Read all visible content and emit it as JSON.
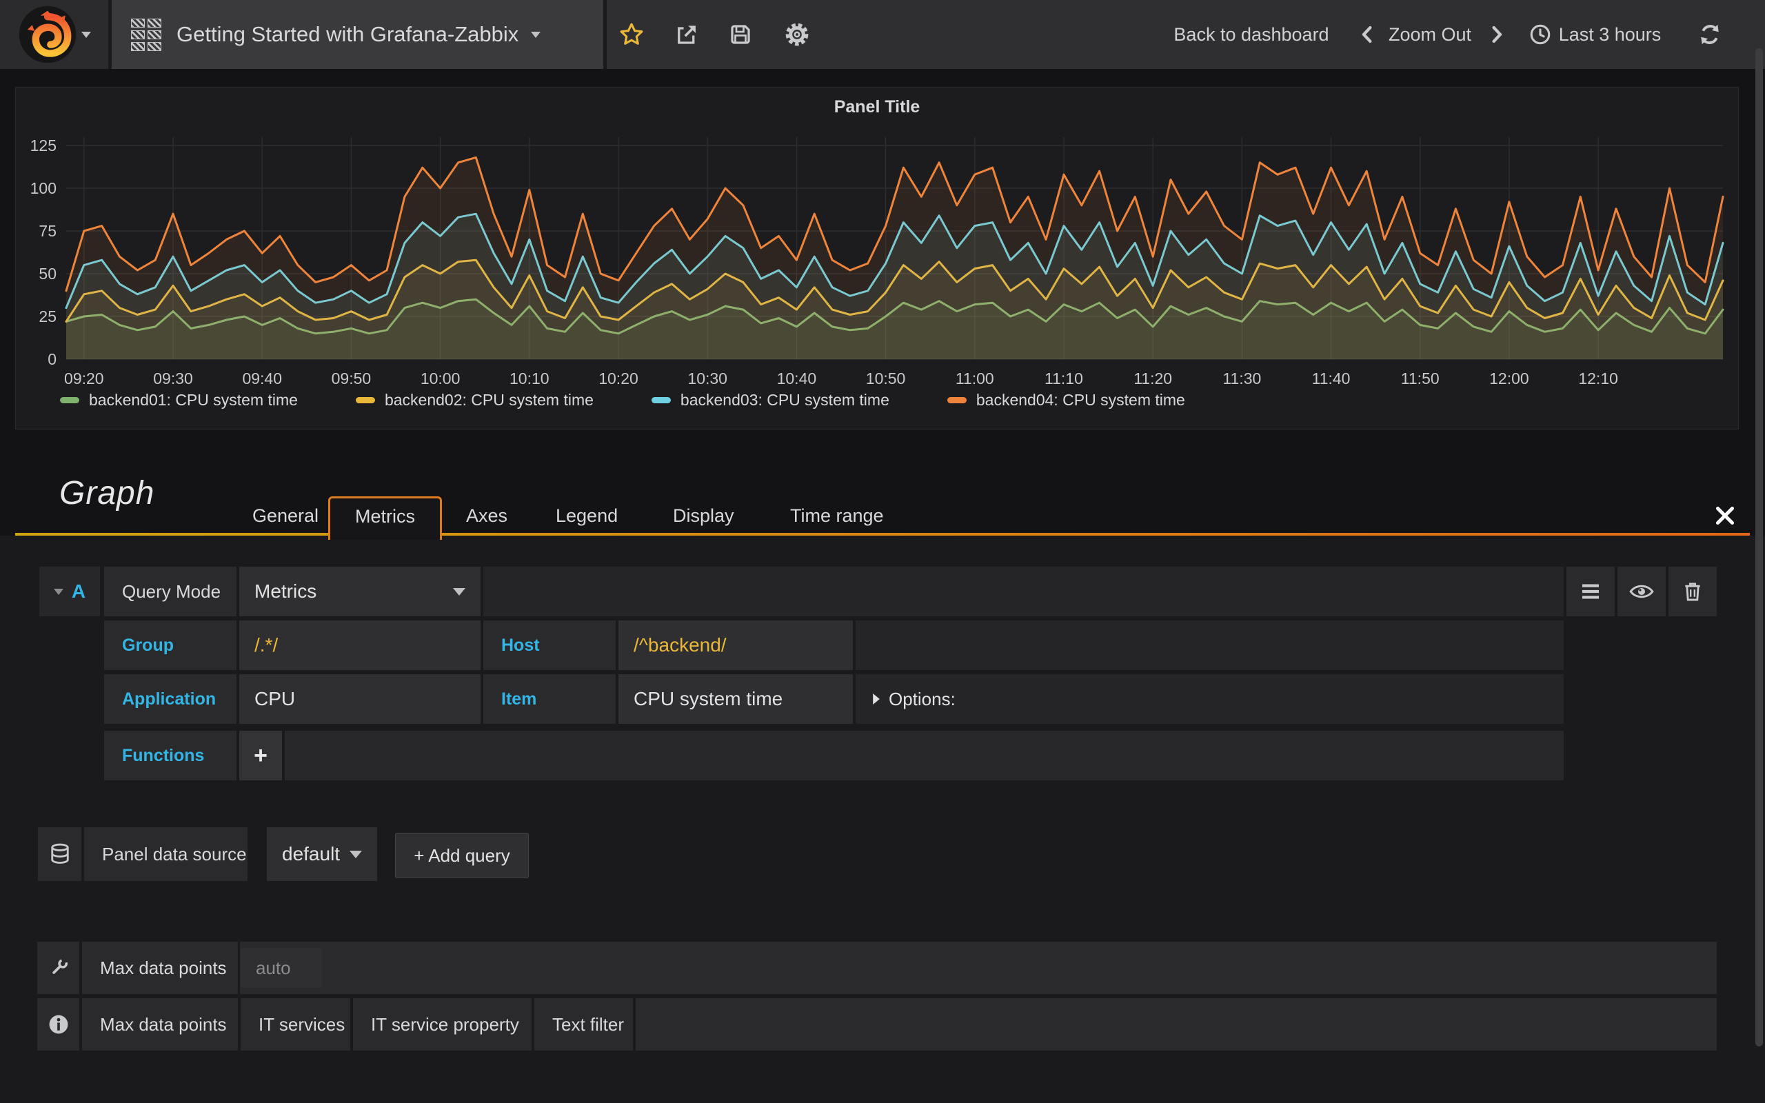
{
  "navbar": {
    "dashboard_title": "Getting Started with Grafana-Zabbix",
    "back_to_dashboard": "Back to dashboard",
    "zoom_out": "Zoom Out",
    "time_range": "Last 3 hours",
    "icons": [
      "grafana-logo",
      "dashboard-grid-icon",
      "star-icon",
      "share-icon",
      "save-icon",
      "gear-icon",
      "chevron-left-icon",
      "chevron-right-icon",
      "clock-icon",
      "refresh-icon"
    ],
    "accent_star_color": "#eab839"
  },
  "panel": {
    "title": "Panel Title"
  },
  "chart_data": {
    "type": "line",
    "title": "Panel Title",
    "xlabel": "",
    "ylabel": "",
    "ylim": [
      0,
      125
    ],
    "y_ticks": [
      0,
      25,
      50,
      75,
      100,
      125
    ],
    "x_ticks": [
      "09:20",
      "09:30",
      "09:40",
      "09:50",
      "10:00",
      "10:10",
      "10:20",
      "10:30",
      "10:40",
      "10:50",
      "11:00",
      "11:10",
      "11:20",
      "11:30",
      "11:40",
      "11:50",
      "12:00",
      "12:10"
    ],
    "x_tick_minutes": [
      2,
      12,
      22,
      32,
      42,
      52,
      62,
      72,
      82,
      92,
      102,
      112,
      122,
      132,
      142,
      152,
      162,
      172
    ],
    "x_total_minutes": 186,
    "grid": true,
    "legend_position": "bottom",
    "background": "#1c1c1e",
    "grid_color": "#2e2e30",
    "series": [
      {
        "name": "backend01: CPU system time",
        "color": "#7eb26d",
        "values": [
          22,
          25,
          26,
          20,
          17,
          19,
          28,
          18,
          20,
          23,
          25,
          20,
          24,
          18,
          15,
          16,
          18,
          15,
          17,
          30,
          33,
          30,
          34,
          35,
          27,
          20,
          31,
          18,
          16,
          27,
          17,
          15,
          20,
          25,
          28,
          23,
          26,
          31,
          29,
          21,
          24,
          19,
          27,
          19,
          17,
          18,
          25,
          33,
          29,
          34,
          28,
          32,
          33,
          25,
          29,
          22,
          32,
          28,
          33,
          24,
          29,
          19,
          31,
          26,
          30,
          25,
          22,
          34,
          32,
          33,
          26,
          33,
          28,
          33,
          22,
          29,
          20,
          18,
          27,
          19,
          16,
          28,
          20,
          16,
          18,
          29,
          17,
          27,
          20,
          16,
          30,
          18,
          15,
          29
        ]
      },
      {
        "name": "backend02: CPU system time",
        "color": "#eab839",
        "values": [
          22,
          38,
          40,
          30,
          26,
          29,
          43,
          28,
          31,
          35,
          38,
          31,
          36,
          28,
          23,
          24,
          28,
          23,
          26,
          48,
          55,
          50,
          57,
          58,
          42,
          30,
          49,
          28,
          24,
          42,
          25,
          23,
          31,
          39,
          44,
          35,
          41,
          50,
          45,
          32,
          36,
          29,
          42,
          29,
          26,
          28,
          39,
          55,
          47,
          57,
          45,
          53,
          55,
          40,
          47,
          35,
          53,
          44,
          54,
          37,
          47,
          30,
          52,
          42,
          48,
          39,
          35,
          56,
          53,
          55,
          42,
          55,
          44,
          54,
          35,
          47,
          31,
          27,
          43,
          29,
          25,
          45,
          30,
          24,
          27,
          47,
          26,
          43,
          30,
          24,
          49,
          27,
          23,
          46
        ]
      },
      {
        "name": "backend03: CPU system time",
        "color": "#6ed0e0",
        "values": [
          30,
          55,
          58,
          44,
          38,
          42,
          60,
          40,
          46,
          52,
          55,
          45,
          52,
          40,
          33,
          35,
          40,
          33,
          38,
          68,
          80,
          72,
          83,
          85,
          62,
          44,
          70,
          40,
          34,
          60,
          36,
          33,
          45,
          56,
          64,
          50,
          60,
          72,
          65,
          47,
          52,
          42,
          60,
          42,
          37,
          40,
          56,
          80,
          68,
          84,
          65,
          78,
          80,
          58,
          68,
          50,
          78,
          64,
          80,
          54,
          68,
          43,
          75,
          61,
          70,
          56,
          50,
          84,
          78,
          81,
          61,
          80,
          64,
          79,
          50,
          68,
          44,
          39,
          63,
          41,
          36,
          66,
          43,
          34,
          39,
          68,
          37,
          63,
          43,
          34,
          72,
          39,
          32,
          68
        ]
      },
      {
        "name": "backend04: CPU system time",
        "color": "#ef843c",
        "values": [
          40,
          75,
          78,
          60,
          52,
          58,
          85,
          55,
          62,
          70,
          75,
          62,
          72,
          55,
          45,
          48,
          55,
          46,
          52,
          95,
          112,
          100,
          115,
          118,
          85,
          60,
          99,
          55,
          48,
          85,
          50,
          46,
          62,
          78,
          88,
          70,
          82,
          100,
          90,
          65,
          72,
          58,
          85,
          58,
          52,
          56,
          78,
          112,
          95,
          115,
          90,
          108,
          112,
          80,
          95,
          70,
          108,
          90,
          110,
          75,
          95,
          60,
          105,
          85,
          98,
          78,
          70,
          115,
          108,
          112,
          85,
          112,
          90,
          110,
          70,
          95,
          62,
          55,
          88,
          58,
          50,
          92,
          60,
          48,
          55,
          95,
          52,
          88,
          60,
          48,
          100,
          55,
          45,
          95
        ]
      }
    ]
  },
  "editor": {
    "heading": "Graph",
    "tabs": [
      "General",
      "Metrics",
      "Axes",
      "Legend",
      "Display",
      "Time range"
    ],
    "active_tab": "Metrics",
    "close_icon": "close-icon"
  },
  "query": {
    "ref": "A",
    "query_mode_label": "Query Mode",
    "query_mode_value": "Metrics",
    "group_label": "Group",
    "group_value": "/.*/",
    "host_label": "Host",
    "host_value": "/^backend/",
    "application_label": "Application",
    "application_value": "CPU",
    "item_label": "Item",
    "item_value": "CPU system time",
    "options_label": "Options:",
    "functions_label": "Functions",
    "add_function_label": "+",
    "row_icons": [
      "menu-icon",
      "eye-icon",
      "trash-icon"
    ],
    "label_color": "#33b5e5",
    "regex_color": "#eab839"
  },
  "datasource_row": {
    "icon": "database-icon",
    "label": "Panel data source",
    "value": "default",
    "add_query_label": "+ Add query"
  },
  "bottom": {
    "row1_icon": "wrench-icon",
    "row1_label": "Max data points",
    "row1_input_placeholder": "auto",
    "row2_icon": "info-icon",
    "row2_items": [
      "Max data points",
      "IT services",
      "IT service property",
      "Text filter"
    ]
  }
}
